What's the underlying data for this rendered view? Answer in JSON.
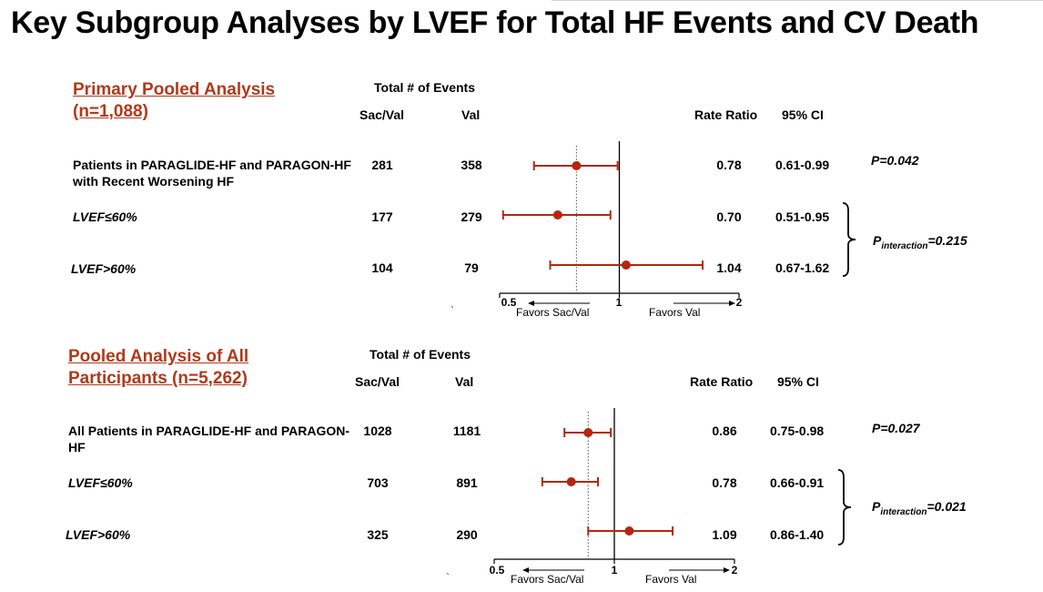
{
  "title": "Key Subgroup Analyses by LVEF for Total HF Events and CV Death",
  "header_labels": {
    "total_events": "Total # of Events",
    "sacval": "Sac/Val",
    "val": "Val",
    "rate_ratio": "Rate Ratio",
    "ci": "95% CI"
  },
  "interaction_p_label": "P",
  "interaction_p_sub": "interaction",
  "stray_mark": "`",
  "panels": [
    {
      "title_line1": "Primary Pooled Analysis",
      "title_line2": "(n=1,088)",
      "rows": [
        {
          "label": "Patients in PARAGLIDE-HF  and PARAGON-HF  with Recent Worsening HF",
          "sacval": "281",
          "val": "358",
          "rr_text": "0.78",
          "ci_text": "0.61-0.99",
          "italic": false
        },
        {
          "label": "LVEF≤60%",
          "sacval": "177",
          "val": "279",
          "rr_text": "0.70",
          "ci_text": "0.51-0.95",
          "italic": true
        },
        {
          "label": "LVEF>60%",
          "sacval": "104",
          "val": "79",
          "rr_text": "1.04",
          "ci_text": "0.67-1.62",
          "italic": true
        }
      ],
      "p_overall": "P=0.042",
      "p_interaction_value": "=0.215",
      "axis_ticks": [
        "0.5",
        "1",
        "2"
      ],
      "favors_left": "Favors Sac/Val",
      "favors_right": "Favors Val"
    },
    {
      "title_line1": "Pooled Analysis of All",
      "title_line2": "Participants (n=5,262)",
      "rows": [
        {
          "label": "All Patients in PARAGLIDE-HF  and PARAGON-HF",
          "sacval": "1028",
          "val": "1181",
          "rr_text": "0.86",
          "ci_text": "0.75-0.98",
          "italic": false
        },
        {
          "label": "LVEF≤60%",
          "sacval": "703",
          "val": "891",
          "rr_text": "0.78",
          "ci_text": "0.66-0.91",
          "italic": true
        },
        {
          "label": "LVEF>60%",
          "sacval": "325",
          "val": "290",
          "rr_text": "1.09",
          "ci_text": "0.86-1.40",
          "italic": true
        }
      ],
      "p_overall": "P=0.027",
      "p_interaction_value": "=0.021",
      "axis_ticks": [
        "0.5",
        "1",
        "2"
      ],
      "favors_left": "Favors Sac/Val",
      "favors_right": "Favors Val"
    }
  ],
  "colors": {
    "marker": "#b5260f",
    "section_title": "#b03a1b"
  },
  "chart_data": [
    {
      "type": "forest",
      "scale": "log",
      "xlim": [
        0.5,
        2
      ],
      "reference_line": 1,
      "overall_reference": 0.78,
      "categories": [
        "Patients in PARAGLIDE-HF and PARAGON-HF with Recent Worsening HF",
        "LVEF≤60%",
        "LVEF>60%"
      ],
      "values": [
        0.78,
        0.7,
        1.04
      ],
      "ci_low": [
        0.61,
        0.51,
        0.67
      ],
      "ci_high": [
        0.99,
        0.95,
        1.62
      ]
    },
    {
      "type": "forest",
      "scale": "log",
      "xlim": [
        0.5,
        2
      ],
      "reference_line": 1,
      "overall_reference": 0.86,
      "categories": [
        "All Patients in PARAGLIDE-HF and PARAGON-HF",
        "LVEF≤60%",
        "LVEF>60%"
      ],
      "values": [
        0.86,
        0.78,
        1.09
      ],
      "ci_low": [
        0.75,
        0.66,
        0.86
      ],
      "ci_high": [
        0.98,
        0.91,
        1.4
      ]
    }
  ]
}
